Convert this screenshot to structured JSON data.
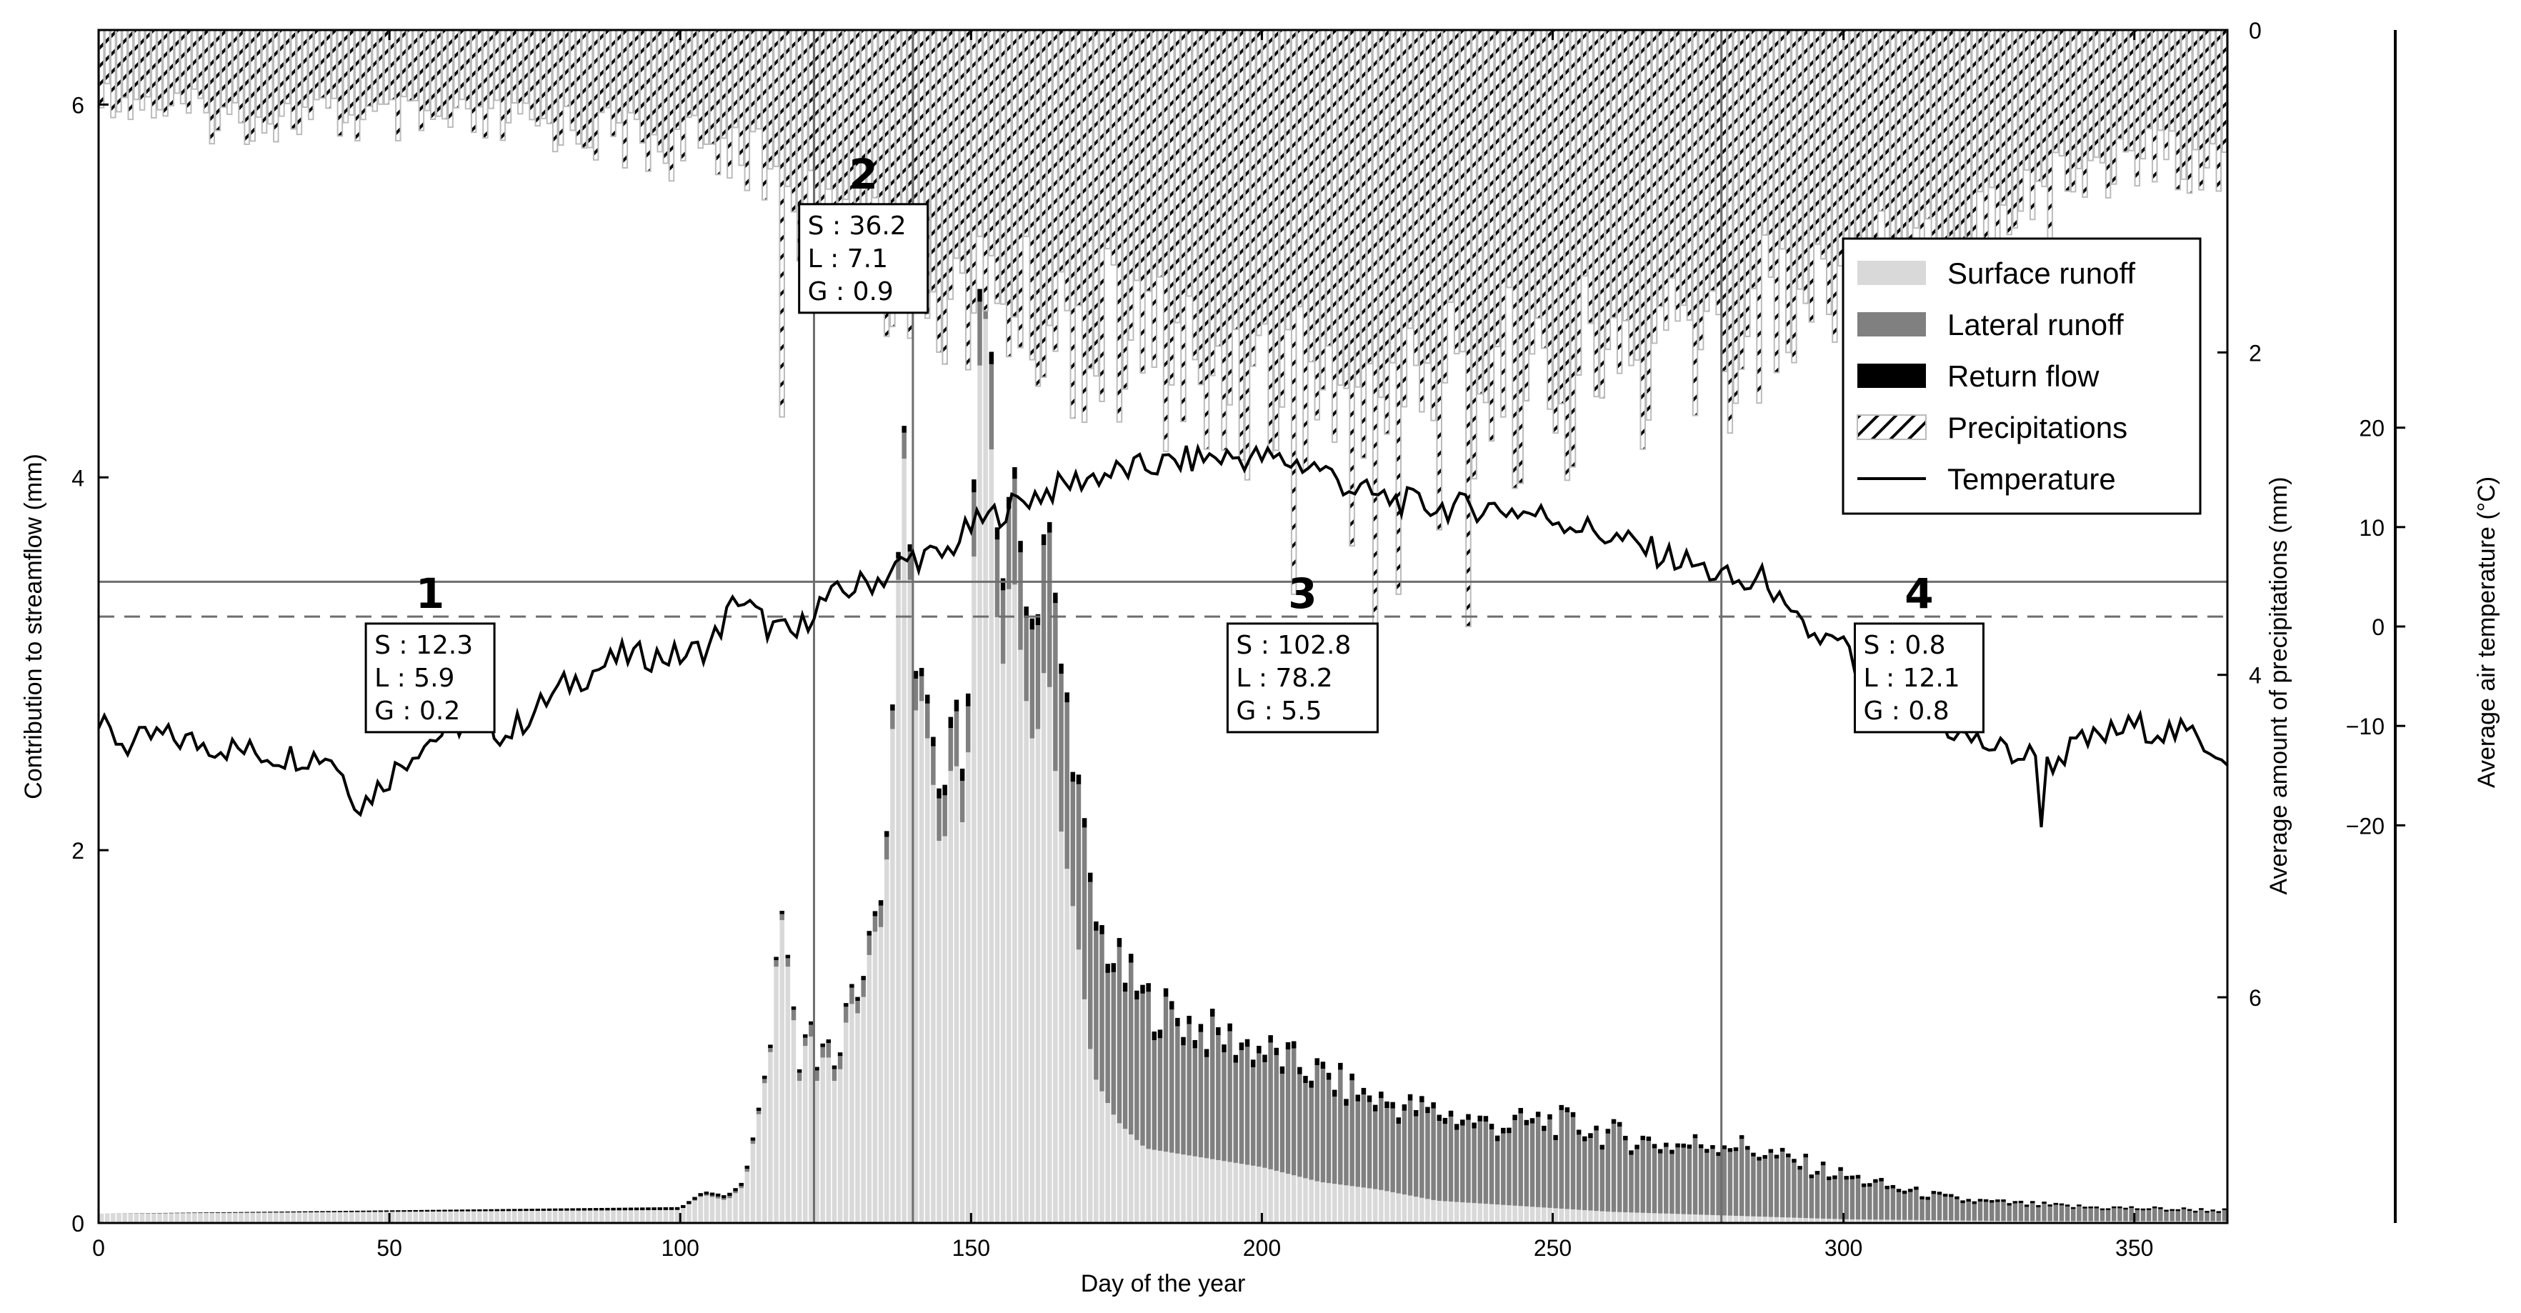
{
  "chart_data": {
    "type": "bar",
    "x_label": "Day of the year",
    "y_label_left": "Contribution to streamflow (mm)",
    "y_label_right_precip": "Average amount of precipitations (mm)",
    "y_label_right_temp": "Average air temperature (°C)",
    "x_range": [
      0,
      366
    ],
    "x_ticks": [
      "0",
      "50",
      "100",
      "150",
      "200",
      "250",
      "300",
      "350"
    ],
    "y_left_range": [
      0,
      6.4
    ],
    "y_left_ticks": [
      "0",
      "2",
      "4",
      "6"
    ],
    "y_precip_range_inverted": [
      0,
      7.4
    ],
    "y_precip_ticks": [
      "0",
      "2",
      "4",
      "6"
    ],
    "y_temp_range": [
      -60,
      60
    ],
    "y_temp_ticks": [
      "20",
      "10",
      "0",
      "−10",
      "−20"
    ],
    "legend": {
      "placement": "top-right",
      "entries": [
        {
          "label": "Surface runoff",
          "color": "#d9d9d9",
          "key": "surface"
        },
        {
          "label": "Lateral runoff",
          "color": "#808080",
          "key": "lateral"
        },
        {
          "label": "Return flow",
          "color": "#000000",
          "key": "return"
        },
        {
          "label": "Precipitations",
          "color": "#ffffff",
          "key": "precip",
          "pattern": "hatch"
        },
        {
          "label": "Temperature",
          "color": "#000000",
          "key": "temp",
          "pattern": "line"
        }
      ]
    },
    "period_boundaries": [
      123,
      140,
      279
    ],
    "temperature_thresholds": [
      4.5,
      1.0
    ],
    "periods": [
      {
        "number": "1",
        "lines": [
          "S : 12.3",
          "L : 5.9",
          "G : 0.2"
        ],
        "x_center": 57,
        "y_number": 3.3
      },
      {
        "number": "2",
        "lines": [
          "S : 36.2",
          "L : 7.1",
          "G : 0.9"
        ],
        "x_center": 131.5,
        "y_number": 5.55
      },
      {
        "number": "3",
        "lines": [
          "S : 102.8",
          "L : 78.2",
          "G : 5.5"
        ],
        "x_center": 207,
        "y_number": 3.3
      },
      {
        "number": "4",
        "lines": [
          "S : 0.8",
          "L : 12.1",
          "G : 0.8"
        ],
        "x_center": 313,
        "y_number": 3.3
      }
    ],
    "series": [
      {
        "name": "Surface runoff",
        "key": "surface"
      },
      {
        "name": "Lateral runoff",
        "key": "lateral"
      },
      {
        "name": "Return flow",
        "key": "return"
      },
      {
        "name": "Precipitations",
        "key": "precip"
      },
      {
        "name": "Temperature",
        "key": "temp"
      }
    ],
    "streamflow_surface": [
      [
        0,
        0.05
      ],
      [
        100,
        0.07
      ],
      [
        104,
        0.15
      ],
      [
        108,
        0.12
      ],
      [
        111,
        0.2
      ],
      [
        113,
        0.5
      ],
      [
        116,
        1.0
      ],
      [
        117,
        1.75
      ],
      [
        119,
        1.25
      ],
      [
        121,
        0.6
      ],
      [
        122,
        1.3
      ],
      [
        123,
        0.7
      ],
      [
        125,
        0.95
      ],
      [
        127,
        0.7
      ],
      [
        129,
        1.2
      ],
      [
        131,
        1.1
      ],
      [
        133,
        1.55
      ],
      [
        135,
        1.6
      ],
      [
        137,
        3.0
      ],
      [
        138,
        3.9
      ],
      [
        139,
        4.3
      ],
      [
        140,
        2.6
      ],
      [
        141,
        2.9
      ],
      [
        143,
        2.5
      ],
      [
        145,
        1.9
      ],
      [
        147,
        2.6
      ],
      [
        149,
        2.0
      ],
      [
        151,
        4.1
      ],
      [
        152,
        5.1
      ],
      [
        153,
        4.6
      ],
      [
        155,
        2.8
      ],
      [
        157,
        3.6
      ],
      [
        159,
        2.9
      ],
      [
        161,
        2.5
      ],
      [
        163,
        3.1
      ],
      [
        165,
        2.2
      ],
      [
        168,
        1.6
      ],
      [
        171,
        0.8
      ],
      [
        175,
        0.55
      ],
      [
        180,
        0.4
      ],
      [
        190,
        0.35
      ],
      [
        200,
        0.3
      ],
      [
        210,
        0.22
      ],
      [
        220,
        0.18
      ],
      [
        230,
        0.12
      ],
      [
        240,
        0.1
      ],
      [
        250,
        0.08
      ],
      [
        260,
        0.06
      ],
      [
        280,
        0.04
      ],
      [
        300,
        0.02
      ],
      [
        330,
        0.01
      ],
      [
        366,
        0.01
      ]
    ],
    "streamflow_lateral": [
      [
        0,
        0.0
      ],
      [
        100,
        0.0
      ],
      [
        115,
        0.02
      ],
      [
        120,
        0.05
      ],
      [
        130,
        0.08
      ],
      [
        138,
        0.12
      ],
      [
        145,
        0.2
      ],
      [
        152,
        0.35
      ],
      [
        160,
        0.55
      ],
      [
        165,
        0.85
      ],
      [
        170,
        0.8
      ],
      [
        175,
        0.8
      ],
      [
        180,
        0.75
      ],
      [
        190,
        0.65
      ],
      [
        200,
        0.6
      ],
      [
        210,
        0.55
      ],
      [
        220,
        0.45
      ],
      [
        230,
        0.45
      ],
      [
        240,
        0.4
      ],
      [
        250,
        0.45
      ],
      [
        260,
        0.4
      ],
      [
        270,
        0.35
      ],
      [
        280,
        0.38
      ],
      [
        290,
        0.3
      ],
      [
        300,
        0.22
      ],
      [
        310,
        0.15
      ],
      [
        320,
        0.1
      ],
      [
        340,
        0.07
      ],
      [
        366,
        0.05
      ]
    ],
    "streamflow_return": [
      [
        0,
        0.0
      ],
      [
        130,
        0.02
      ],
      [
        140,
        0.04
      ],
      [
        150,
        0.07
      ],
      [
        160,
        0.06
      ],
      [
        170,
        0.05
      ],
      [
        200,
        0.04
      ],
      [
        240,
        0.03
      ],
      [
        280,
        0.02
      ],
      [
        300,
        0.02
      ],
      [
        340,
        0.01
      ],
      [
        366,
        0.01
      ]
    ],
    "precipitation_spikes": [
      [
        117,
        2.4
      ],
      [
        124,
        1.6
      ],
      [
        135,
        1.9
      ],
      [
        155,
        1.7
      ],
      [
        170,
        2.1
      ],
      [
        190,
        2.6
      ],
      [
        205,
        3.5
      ],
      [
        215,
        3.2
      ],
      [
        219,
        4.0
      ],
      [
        223,
        3.5
      ],
      [
        230,
        3.1
      ],
      [
        235,
        3.7
      ],
      [
        245,
        2.3
      ],
      [
        250,
        2.5
      ],
      [
        265,
        2.6
      ],
      [
        280,
        2.5
      ],
      [
        290,
        2.0
      ],
      [
        305,
        2.3
      ],
      [
        310,
        2.0
      ],
      [
        320,
        1.7
      ],
      [
        335,
        1.5
      ]
    ],
    "precip_mean_curve": [
      [
        0,
        0.4
      ],
      [
        20,
        0.55
      ],
      [
        40,
        0.55
      ],
      [
        60,
        0.6
      ],
      [
        80,
        0.6
      ],
      [
        100,
        0.75
      ],
      [
        110,
        0.7
      ],
      [
        120,
        1.2
      ],
      [
        130,
        1.3
      ],
      [
        140,
        1.55
      ],
      [
        150,
        1.7
      ],
      [
        160,
        1.8
      ],
      [
        170,
        1.9
      ],
      [
        180,
        2.0
      ],
      [
        190,
        2.1
      ],
      [
        200,
        2.2
      ],
      [
        210,
        2.25
      ],
      [
        220,
        2.2
      ],
      [
        230,
        2.2
      ],
      [
        240,
        2.2
      ],
      [
        250,
        2.2
      ],
      [
        260,
        2.1
      ],
      [
        270,
        2.0
      ],
      [
        280,
        1.9
      ],
      [
        290,
        1.7
      ],
      [
        300,
        1.5
      ],
      [
        310,
        1.4
      ],
      [
        320,
        1.2
      ],
      [
        330,
        1.0
      ],
      [
        340,
        0.9
      ],
      [
        350,
        0.8
      ],
      [
        366,
        0.8
      ]
    ],
    "temperature": [
      [
        0,
        -10
      ],
      [
        5,
        -12
      ],
      [
        10,
        -11
      ],
      [
        20,
        -12
      ],
      [
        30,
        -13
      ],
      [
        40,
        -13
      ],
      [
        45,
        -18
      ],
      [
        55,
        -12
      ],
      [
        65,
        -9
      ],
      [
        70,
        -11
      ],
      [
        80,
        -6
      ],
      [
        90,
        -3
      ],
      [
        100,
        -3
      ],
      [
        105,
        -2
      ],
      [
        110,
        3
      ],
      [
        115,
        0
      ],
      [
        120,
        -1
      ],
      [
        123,
        2
      ],
      [
        130,
        4
      ],
      [
        135,
        5
      ],
      [
        140,
        7
      ],
      [
        145,
        7
      ],
      [
        150,
        10
      ],
      [
        160,
        13
      ],
      [
        170,
        15
      ],
      [
        180,
        16
      ],
      [
        190,
        17
      ],
      [
        200,
        17
      ],
      [
        210,
        16
      ],
      [
        215,
        14
      ],
      [
        220,
        13
      ],
      [
        230,
        12
      ],
      [
        240,
        12
      ],
      [
        250,
        11
      ],
      [
        255,
        10
      ],
      [
        260,
        9
      ],
      [
        265,
        8
      ],
      [
        270,
        7
      ],
      [
        275,
        6
      ],
      [
        279,
        5
      ],
      [
        283,
        4
      ],
      [
        287,
        5
      ],
      [
        290,
        1
      ],
      [
        295,
        -1
      ],
      [
        300,
        -2
      ],
      [
        305,
        -8
      ],
      [
        310,
        -8
      ],
      [
        315,
        -9
      ],
      [
        320,
        -11
      ],
      [
        325,
        -12
      ],
      [
        330,
        -13
      ],
      [
        333,
        -13
      ],
      [
        334,
        -19
      ],
      [
        335,
        -14
      ],
      [
        340,
        -12
      ],
      [
        350,
        -10
      ],
      [
        360,
        -11
      ],
      [
        366,
        -13
      ]
    ]
  }
}
